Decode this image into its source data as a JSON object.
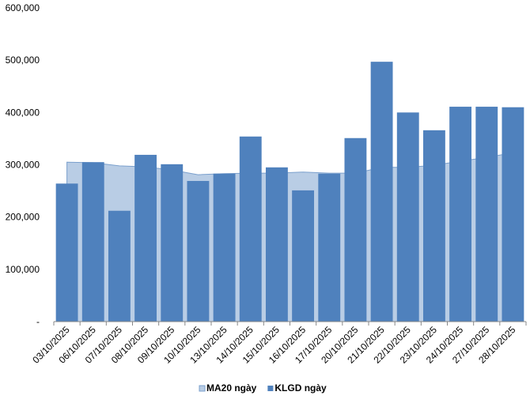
{
  "chart_data": {
    "type": "bar",
    "categories": [
      "03/10/2025",
      "06/10/2025",
      "07/10/2025",
      "08/10/2025",
      "09/10/2025",
      "10/10/2025",
      "13/10/2025",
      "14/10/2025",
      "15/10/2025",
      "16/10/2025",
      "17/10/2025",
      "20/10/2025",
      "21/10/2025",
      "22/10/2025",
      "23/10/2025",
      "24/10/2025",
      "27/10/2025",
      "28/10/2025"
    ],
    "series": [
      {
        "name": "MA20 ngày",
        "type": "area",
        "color": "#b9cde5",
        "values": [
          305000,
          304000,
          298000,
          296000,
          290000,
          281000,
          283000,
          284000,
          284000,
          286000,
          284000,
          284000,
          295000,
          295000,
          299000,
          307000,
          314000,
          323000
        ]
      },
      {
        "name": "KLGD ngày",
        "type": "bar",
        "color": "#4f81bd",
        "values": [
          264000,
          305000,
          212000,
          319000,
          301000,
          269000,
          283000,
          354000,
          295000,
          251000,
          283000,
          351000,
          497000,
          400000,
          366000,
          411000,
          411000,
          410000
        ]
      }
    ],
    "ylim": [
      0,
      600000
    ],
    "yticks": [
      {
        "value": 0,
        "label": "-"
      },
      {
        "value": 100000,
        "label": "100,000"
      },
      {
        "value": 200000,
        "label": "200,000"
      },
      {
        "value": 300000,
        "label": "300,000"
      },
      {
        "value": 400000,
        "label": "400,000"
      },
      {
        "value": 500000,
        "label": "500,000"
      },
      {
        "value": 600000,
        "label": "600,000"
      }
    ],
    "grid": false,
    "legend": "bottom"
  }
}
